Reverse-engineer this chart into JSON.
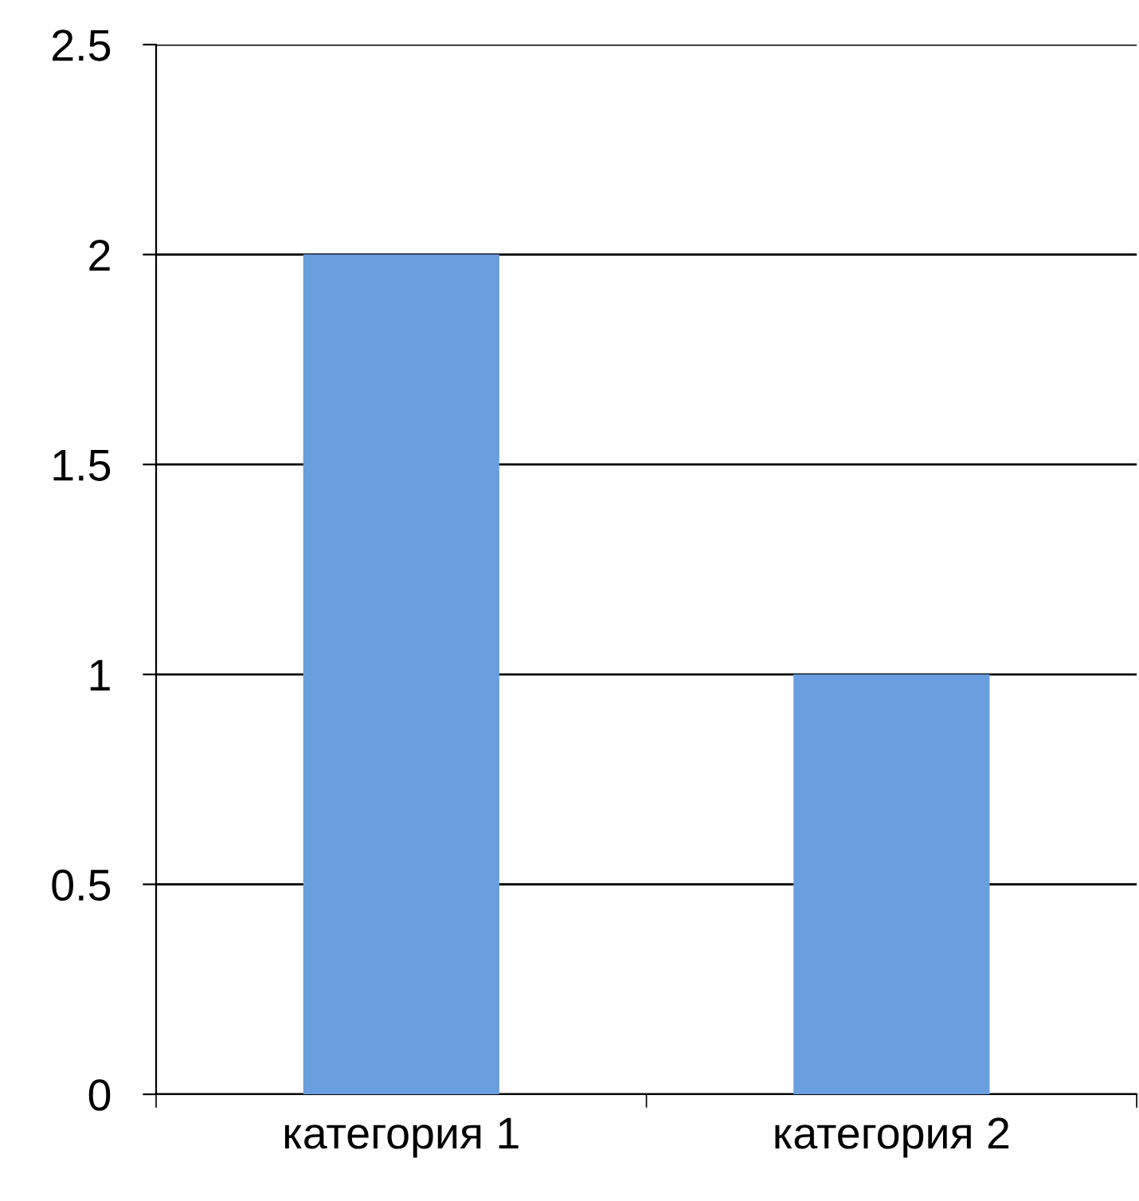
{
  "chart_data": {
    "type": "bar",
    "categories": [
      "категория 1",
      "категория 2"
    ],
    "values": [
      2,
      1
    ],
    "color": "#6a9fdf",
    "ylim": [
      0,
      2.5
    ],
    "yticks": [
      0,
      0.5,
      1,
      1.5,
      2,
      2.5
    ],
    "grid": "y"
  }
}
